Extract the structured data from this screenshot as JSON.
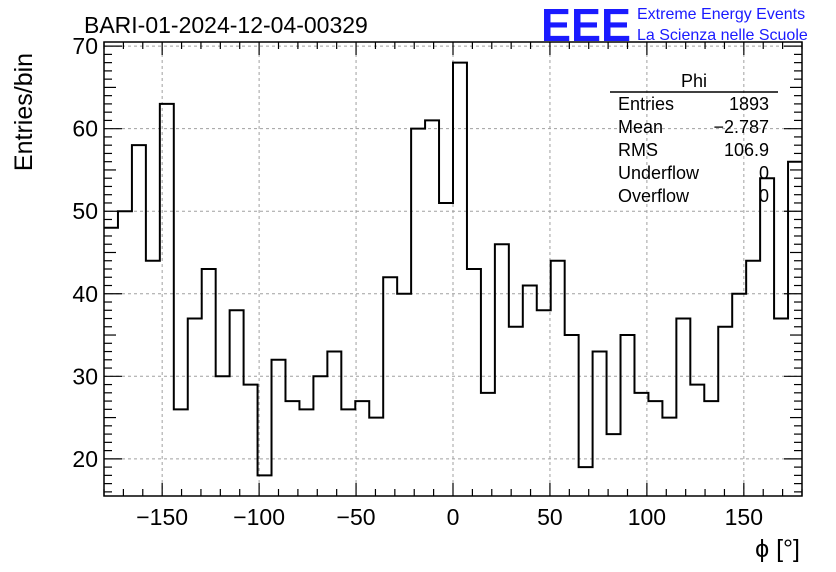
{
  "chart_data": {
    "type": "bar",
    "style": "step-histogram",
    "title": "BARI-01-2024-12-04-00329",
    "xlabel": "ϕ [°]",
    "ylabel": "Entries/bin",
    "xlim": [
      -180,
      180
    ],
    "ylim": [
      15.5,
      70.5
    ],
    "grid": true,
    "bin_width": 7.2,
    "x_ticks": [
      -150,
      -100,
      -50,
      0,
      50,
      100,
      150
    ],
    "x_tick_labels": [
      "−150",
      "−100",
      "−50",
      "0",
      "50",
      "100",
      "150"
    ],
    "y_ticks": [
      20,
      30,
      40,
      50,
      60,
      70
    ],
    "y_tick_labels": [
      "20",
      "30",
      "40",
      "50",
      "60",
      "70"
    ],
    "values": [
      48,
      50,
      58,
      44,
      63,
      26,
      37,
      43,
      30,
      38,
      29,
      18,
      32,
      27,
      26,
      30,
      33,
      26,
      27,
      25,
      42,
      40,
      60,
      61,
      51,
      68,
      43,
      28,
      46,
      36,
      41,
      38,
      44,
      35,
      19,
      33,
      23,
      35,
      28,
      27,
      25,
      37,
      29,
      27,
      36,
      40,
      44,
      54,
      37,
      56
    ],
    "line_color": "#000000",
    "grid_color": "#a0a0a0"
  },
  "stats_box": {
    "title": "Phi",
    "rows": [
      {
        "label": "Entries",
        "value": "1893"
      },
      {
        "label": "Mean",
        "value": "−2.787"
      },
      {
        "label": "RMS",
        "value": "106.9"
      },
      {
        "label": "Underflow",
        "value": "0"
      },
      {
        "label": "Overflow",
        "value": "0"
      }
    ]
  },
  "logo": {
    "mark": "EEE",
    "line1": "Extreme Energy Events",
    "line2": "La Scienza nelle Scuole",
    "color": "#1a1aff"
  }
}
